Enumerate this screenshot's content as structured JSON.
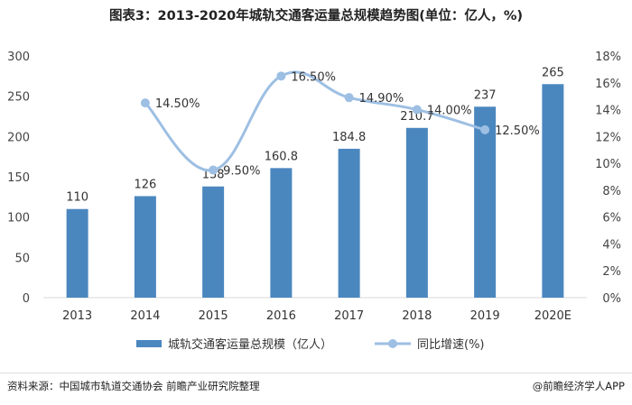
{
  "title": "图表3：2013-2020年城轨交通客运量总规模趋势图(单位：亿人，%)",
  "chart_data": {
    "type": "bar",
    "categories": [
      "2013",
      "2014",
      "2015",
      "2016",
      "2017",
      "2018",
      "2019",
      "2020E"
    ],
    "series": [
      {
        "name": "城轨交通客运量总规模（亿人）",
        "type": "bar",
        "axis": "left",
        "values": [
          110,
          126,
          138,
          160.8,
          184.8,
          210.7,
          237,
          265
        ],
        "labels": [
          "110",
          "126",
          "138",
          "160.8",
          "184.8",
          "210.7",
          "237",
          "265"
        ],
        "color": "#4b87bf"
      },
      {
        "name": "同比增速(%)",
        "type": "line",
        "axis": "right",
        "values": [
          null,
          14.5,
          9.5,
          16.5,
          14.9,
          14.0,
          12.5,
          null
        ],
        "labels": [
          "",
          "14.50%",
          "9.50%",
          "16.50%",
          "14.90%",
          "14.00%",
          "12.50%",
          ""
        ],
        "color": "#9dbfe3"
      }
    ],
    "y_left": {
      "ylim": [
        0,
        300
      ],
      "ticks": [
        "0",
        "50",
        "100",
        "150",
        "200",
        "250",
        "300"
      ]
    },
    "y_right": {
      "ylim": [
        0,
        18
      ],
      "ticks": [
        "0%",
        "2%",
        "4%",
        "6%",
        "8%",
        "10%",
        "12%",
        "14%",
        "16%",
        "18%"
      ]
    },
    "grid": false,
    "legend": "bottom"
  },
  "footer": {
    "source": "资料来源：中国城市轨道交通协会 前瞻产业研究院整理",
    "brand": "@前瞻经济学人APP"
  }
}
